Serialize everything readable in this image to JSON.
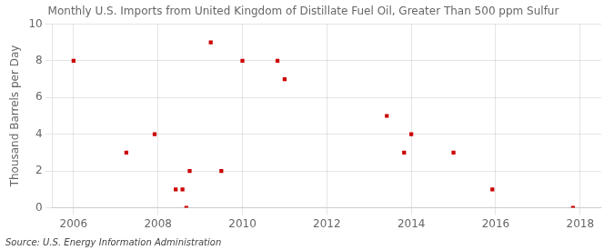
{
  "chart_data": {
    "type": "scatter",
    "title": "Monthly U.S. Imports from United Kingdom of Distillate Fuel Oil, Greater Than 500 ppm Sulfur",
    "ylabel": "Thousand Barrels per Day",
    "annotation": "Source: U.S. Energy Information Administration",
    "x": [
      2006.0,
      2007.25,
      2007.92,
      2008.42,
      2008.58,
      2008.67,
      2008.75,
      2009.25,
      2009.5,
      2010.0,
      2010.83,
      2011.0,
      2013.42,
      2013.83,
      2014.0,
      2015.0,
      2015.92,
      2017.83
    ],
    "values": [
      8,
      3,
      4,
      1,
      1,
      0,
      2,
      9,
      2,
      8,
      8,
      7,
      5,
      3,
      4,
      3,
      1,
      0
    ],
    "color": "#cc0000",
    "marker": "square",
    "xlim": [
      2005.5,
      2018.5
    ],
    "xticks": [
      2006,
      2008,
      2010,
      2012,
      2014,
      2016,
      2018
    ],
    "ylim": [
      0,
      10
    ],
    "yticks": [
      0,
      2,
      4,
      6,
      8,
      10
    ],
    "grid": true
  }
}
